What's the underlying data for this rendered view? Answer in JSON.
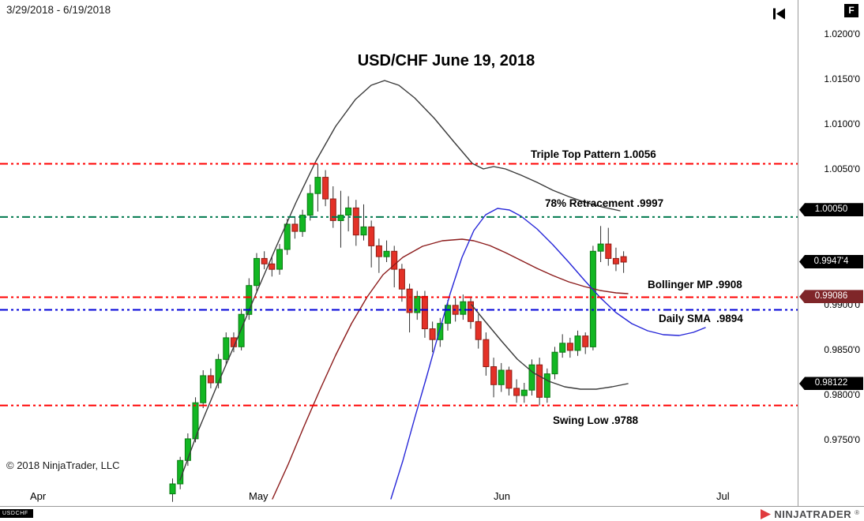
{
  "window": {
    "date_range": "3/29/2018 - 6/19/2018",
    "fixed_scale_label": "F"
  },
  "chart_data": {
    "type": "candlestick",
    "title": "USD/CHF June 19, 2018",
    "symbol": "USD/CHF",
    "interval": "daily",
    "date_range": [
      "3/29/2018",
      "6/19/2018"
    ],
    "last_price": 0.99474,
    "ylim": [
      0.968,
      1.0235
    ],
    "x_ticks": [
      "Apr",
      "May",
      "Jun",
      "Jul"
    ],
    "y_ticks": [
      {
        "label": "1.0200'0",
        "price": 1.02
      },
      {
        "label": "1.0150'0",
        "price": 1.015
      },
      {
        "label": "1.0100'0",
        "price": 1.01
      },
      {
        "label": "1.0050'0",
        "price": 1.005
      },
      {
        "label": "0.9900'0",
        "price": 0.99
      },
      {
        "label": "0.9850'0",
        "price": 0.985
      },
      {
        "label": "0.9800'0",
        "price": 0.98
      },
      {
        "label": "0.9750'0",
        "price": 0.975
      }
    ],
    "price_badges": [
      {
        "name": "price-marker-upper-band",
        "text": "1.00050",
        "price": 1.0005,
        "bg": "#000000"
      },
      {
        "name": "price-marker-last-price",
        "text": "0.9947'4",
        "price": 0.99474,
        "bg": "#000000"
      },
      {
        "name": "price-marker-bollinger-mp",
        "text": "0.99086",
        "price": 0.99086,
        "bg": "#7f2629"
      },
      {
        "name": "price-marker-lower-band",
        "text": "0.98122",
        "price": 0.98122,
        "bg": "#000000"
      }
    ],
    "hlines": [
      {
        "name": "triple-top-line",
        "label": "Triple Top Pattern 1.0056",
        "price": 1.0056,
        "color": "#ff0000",
        "width": 2
      },
      {
        "name": "retracement-line",
        "label": "78% Retracement .9997",
        "price": 0.9997,
        "color": "#00794e",
        "width": 2
      },
      {
        "name": "bollinger-mp-line",
        "label": "Bollinger MP .9908",
        "price": 0.9908,
        "color": "#ff0000",
        "width": 2
      },
      {
        "name": "daily-sma-line",
        "label": "Daily SMA  .9894",
        "price": 0.9894,
        "color": "#0000d8",
        "width": 2
      },
      {
        "name": "swing-low-line",
        "label": "Swing Low .9788",
        "price": 0.9788,
        "color": "#ff0000",
        "width": 2
      }
    ],
    "colors": {
      "up": "#12b723",
      "up_border": "#0a7a12",
      "down": "#e43127",
      "down_border": "#8f1d14",
      "wick": "#303030"
    },
    "candles": [
      [
        0.969,
        0.9707,
        0.9681,
        0.9701
      ],
      [
        0.9701,
        0.9731,
        0.9695,
        0.9727
      ],
      [
        0.9727,
        0.9757,
        0.9721,
        0.9751
      ],
      [
        0.9751,
        0.9797,
        0.9747,
        0.9791
      ],
      [
        0.9791,
        0.9827,
        0.9785,
        0.9821
      ],
      [
        0.9821,
        0.9829,
        0.9807,
        0.9813
      ],
      [
        0.9813,
        0.9845,
        0.9807,
        0.9839
      ],
      [
        0.9839,
        0.9869,
        0.9833,
        0.9863
      ],
      [
        0.9863,
        0.9869,
        0.9847,
        0.9853
      ],
      [
        0.9853,
        0.9895,
        0.9849,
        0.9889
      ],
      [
        0.9889,
        0.9929,
        0.9883,
        0.9921
      ],
      [
        0.9921,
        0.9957,
        0.9915,
        0.9951
      ],
      [
        0.9951,
        0.9959,
        0.9939,
        0.9945
      ],
      [
        0.9945,
        0.9953,
        0.9931,
        0.9939
      ],
      [
        0.9939,
        0.9967,
        0.9933,
        0.9961
      ],
      [
        0.9961,
        0.9995,
        0.9955,
        0.9989
      ],
      [
        0.9989,
        0.9997,
        0.9973,
        0.9981
      ],
      [
        0.9981,
        1.0005,
        0.9975,
        0.9999
      ],
      [
        0.9999,
        1.0033,
        0.9993,
        1.0023
      ],
      [
        1.0023,
        1.0056,
        1.0003,
        1.0041
      ],
      [
        1.0041,
        1.0049,
        1.0009,
        1.0017
      ],
      [
        1.0017,
        1.0031,
        0.9985,
        0.9993
      ],
      [
        0.9993,
        1.0026,
        0.9963,
        0.9999
      ],
      [
        0.9999,
        1.002,
        0.9981,
        1.0007
      ],
      [
        1.0007,
        1.0016,
        0.9965,
        0.9977
      ],
      [
        0.9977,
        1.0011,
        0.9971,
        0.9986
      ],
      [
        0.9986,
        0.9993,
        0.9941,
        0.9965
      ],
      [
        0.9965,
        0.9973,
        0.9935,
        0.9953
      ],
      [
        0.9953,
        0.9971,
        0.9947,
        0.9959
      ],
      [
        0.9959,
        0.9965,
        0.9919,
        0.9939
      ],
      [
        0.9939,
        0.9945,
        0.9903,
        0.9917
      ],
      [
        0.9917,
        0.9923,
        0.9869,
        0.9891
      ],
      [
        0.9891,
        0.9915,
        0.9883,
        0.9909
      ],
      [
        0.9909,
        0.9915,
        0.9863,
        0.9873
      ],
      [
        0.9873,
        0.9881,
        0.9847,
        0.9861
      ],
      [
        0.9861,
        0.9885,
        0.9853,
        0.9879
      ],
      [
        0.9879,
        0.9905,
        0.9871,
        0.9899
      ],
      [
        0.9899,
        0.9907,
        0.9881,
        0.9889
      ],
      [
        0.9889,
        0.9911,
        0.9883,
        0.9903
      ],
      [
        0.9903,
        0.9909,
        0.9873,
        0.9881
      ],
      [
        0.9881,
        0.9889,
        0.9851,
        0.9861
      ],
      [
        0.9861,
        0.9869,
        0.9821,
        0.9831
      ],
      [
        0.9831,
        0.9841,
        0.9797,
        0.9811
      ],
      [
        0.9811,
        0.9835,
        0.9803,
        0.9827
      ],
      [
        0.9827,
        0.9831,
        0.9799,
        0.9807
      ],
      [
        0.9807,
        0.9817,
        0.9791,
        0.9799
      ],
      [
        0.9799,
        0.9813,
        0.9791,
        0.9805
      ],
      [
        0.9805,
        0.9839,
        0.9799,
        0.9833
      ],
      [
        0.9833,
        0.9841,
        0.9788,
        0.9797
      ],
      [
        0.9797,
        0.9829,
        0.9791,
        0.9823
      ],
      [
        0.9823,
        0.9853,
        0.9817,
        0.9847
      ],
      [
        0.9847,
        0.9867,
        0.9841,
        0.9857
      ],
      [
        0.9857,
        0.9863,
        0.9841,
        0.9849
      ],
      [
        0.9849,
        0.9871,
        0.9843,
        0.9865
      ],
      [
        0.9865,
        0.9869,
        0.9845,
        0.9853
      ],
      [
        0.9853,
        0.9965,
        0.9849,
        0.9959
      ],
      [
        0.9959,
        0.9987,
        0.9947,
        0.9967
      ],
      [
        0.9967,
        0.9985,
        0.9943,
        0.9951
      ],
      [
        0.9951,
        0.9963,
        0.9937,
        0.9945
      ],
      [
        0.9953,
        0.9959,
        0.9935,
        0.9947
      ]
    ],
    "overlays": [
      {
        "name": "sma-long-black",
        "color": "#3a3a3a",
        "width": 1.4,
        "points": [
          [
            228,
            608
          ],
          [
            250,
            548
          ],
          [
            275,
            488
          ],
          [
            300,
            430
          ],
          [
            325,
            370
          ],
          [
            350,
            312
          ],
          [
            375,
            256
          ],
          [
            400,
            204
          ],
          [
            425,
            160
          ],
          [
            450,
            126
          ],
          [
            470,
            108
          ],
          [
            487,
            102
          ],
          [
            505,
            108
          ],
          [
            525,
            124
          ],
          [
            550,
            150
          ],
          [
            575,
            180
          ],
          [
            598,
            207
          ],
          [
            612,
            214
          ],
          [
            625,
            211
          ],
          [
            640,
            214
          ],
          [
            660,
            222
          ],
          [
            680,
            231
          ],
          [
            700,
            241
          ],
          [
            720,
            249
          ],
          [
            740,
            256
          ],
          [
            762,
            262
          ],
          [
            785,
            267
          ]
        ]
      },
      {
        "name": "bollinger-lower-black",
        "color": "#3a3a3a",
        "width": 1.4,
        "points": [
          [
            597,
            386
          ],
          [
            615,
            408
          ],
          [
            635,
            432
          ],
          [
            655,
            455
          ],
          [
            675,
            472
          ],
          [
            695,
            483
          ],
          [
            715,
            490
          ],
          [
            735,
            493
          ],
          [
            755,
            493
          ],
          [
            775,
            490
          ],
          [
            795,
            486
          ]
        ]
      },
      {
        "name": "sma-mid-darkred",
        "color": "#8b1a1a",
        "width": 1.4,
        "points": [
          [
            345,
            632
          ],
          [
            365,
            588
          ],
          [
            385,
            540
          ],
          [
            405,
            494
          ],
          [
            425,
            450
          ],
          [
            445,
            410
          ],
          [
            465,
            376
          ],
          [
            485,
            348
          ],
          [
            510,
            326
          ],
          [
            535,
            312
          ],
          [
            560,
            305
          ],
          [
            585,
            303
          ],
          [
            600,
            305
          ],
          [
            620,
            311
          ],
          [
            640,
            320
          ],
          [
            660,
            330
          ],
          [
            680,
            340
          ],
          [
            700,
            349
          ],
          [
            720,
            357
          ],
          [
            740,
            363
          ],
          [
            760,
            368
          ],
          [
            780,
            371
          ],
          [
            795,
            372
          ]
        ]
      },
      {
        "name": "bollinger-upper-blue",
        "color": "#2626d8",
        "width": 1.4,
        "points": [
          [
            495,
            632
          ],
          [
            510,
            584
          ],
          [
            525,
            530
          ],
          [
            540,
            478
          ],
          [
            555,
            424
          ],
          [
            570,
            372
          ],
          [
            585,
            326
          ],
          [
            600,
            292
          ],
          [
            615,
            272
          ],
          [
            630,
            264
          ],
          [
            645,
            266
          ],
          [
            660,
            274
          ],
          [
            680,
            290
          ],
          [
            700,
            310
          ],
          [
            720,
            332
          ],
          [
            740,
            355
          ],
          [
            760,
            377
          ],
          [
            780,
            396
          ],
          [
            800,
            410
          ],
          [
            820,
            419
          ],
          [
            840,
            424
          ],
          [
            860,
            425
          ],
          [
            878,
            421
          ],
          [
            893,
            415
          ]
        ]
      }
    ]
  },
  "footer": {
    "copyright": "© 2018 NinjaTrader, LLC",
    "instrument": "USDCHF",
    "brand": "NINJATRADER",
    "brand_reg": "®"
  }
}
